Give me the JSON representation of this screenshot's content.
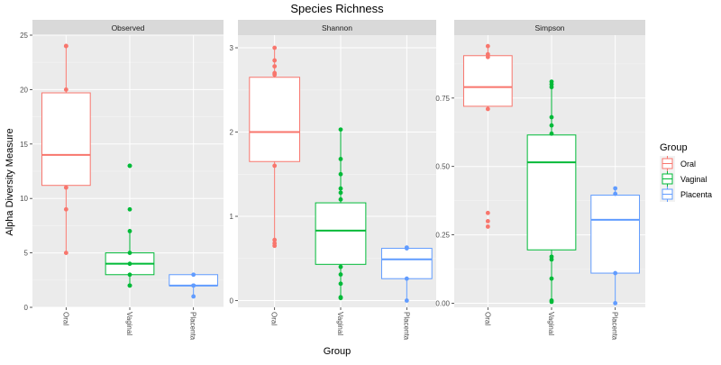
{
  "chart_data": {
    "type": "boxplot",
    "title": "Species Richness",
    "xlabel": "Group",
    "ylabel": "Alpha Diversity Measure",
    "legend": {
      "title": "Group",
      "placement": "right",
      "entries": [
        {
          "name": "Oral",
          "color": "#F8766D"
        },
        {
          "name": "Vaginal",
          "color": "#00BA38"
        },
        {
          "name": "Placenta",
          "color": "#619CFF"
        }
      ]
    },
    "grid": true,
    "categories": [
      "Oral",
      "Vaginal",
      "Placenta"
    ],
    "facets": [
      {
        "name": "Observed",
        "ylim": [
          0,
          25
        ],
        "yticks": [
          0,
          5,
          10,
          15,
          20,
          25
        ],
        "ytick_labels": [
          "0",
          "5",
          "10",
          "15",
          "20",
          "25"
        ],
        "boxes": [
          {
            "group": "Oral",
            "whisker_low": 5,
            "q1": 11.2,
            "median": 14,
            "q3": 19.7,
            "whisker_high": 24,
            "points": [
              24,
              24,
              20,
              11,
              9,
              5
            ]
          },
          {
            "group": "Vaginal",
            "whisker_low": 2,
            "q1": 3,
            "median": 4,
            "q3": 5,
            "whisker_high": 7,
            "points": [
              13,
              13,
              9,
              7,
              5,
              4,
              3,
              2,
              2
            ]
          },
          {
            "group": "Placenta",
            "whisker_low": 1,
            "q1": 2,
            "median": 2,
            "q3": 3,
            "whisker_high": 3,
            "points": [
              3,
              2,
              2,
              1
            ]
          }
        ]
      },
      {
        "name": "Shannon",
        "ylim": [
          -0.08,
          3.15
        ],
        "yticks": [
          0,
          1,
          2,
          3
        ],
        "ytick_labels": [
          "0",
          "1",
          "2",
          "3"
        ],
        "boxes": [
          {
            "group": "Oral",
            "whisker_low": 0.65,
            "q1": 1.65,
            "median": 2.0,
            "q3": 2.65,
            "whisker_high": 3.0,
            "points": [
              3.0,
              2.85,
              2.78,
              2.7,
              2.68,
              1.6,
              0.72,
              0.68,
              0.65
            ]
          },
          {
            "group": "Vaginal",
            "whisker_low": 0.03,
            "q1": 0.43,
            "median": 0.83,
            "q3": 1.16,
            "whisker_high": 2.03,
            "points": [
              2.03,
              1.68,
              1.5,
              1.33,
              1.28,
              1.2,
              0.4,
              0.31,
              0.2,
              0.04,
              0.03
            ]
          },
          {
            "group": "Placenta",
            "whisker_low": 0.0,
            "q1": 0.26,
            "median": 0.49,
            "q3": 0.62,
            "whisker_high": 0.63,
            "points": [
              0.63,
              0.62,
              0.26,
              0.0
            ]
          }
        ]
      },
      {
        "name": "Simpson",
        "ylim": [
          -0.015,
          0.98
        ],
        "yticks": [
          0,
          0.25,
          0.5,
          0.75
        ],
        "ytick_labels": [
          "0.00",
          "0.25",
          "0.50",
          "0.75"
        ],
        "boxes": [
          {
            "group": "Oral",
            "whisker_low": 0.71,
            "q1": 0.72,
            "median": 0.79,
            "q3": 0.905,
            "whisker_high": 0.94,
            "points": [
              0.94,
              0.91,
              0.9,
              0.71,
              0.33,
              0.3,
              0.28
            ]
          },
          {
            "group": "Vaginal",
            "whisker_low": 0.01,
            "q1": 0.195,
            "median": 0.515,
            "q3": 0.615,
            "whisker_high": 0.81,
            "points": [
              0.81,
              0.8,
              0.79,
              0.68,
              0.65,
              0.62,
              0.17,
              0.16,
              0.09,
              0.01,
              0.005
            ]
          },
          {
            "group": "Placenta",
            "whisker_low": 0.0,
            "q1": 0.11,
            "median": 0.305,
            "q3": 0.395,
            "whisker_high": 0.42,
            "points": [
              0.42,
              0.4,
              0.11,
              0.0
            ]
          }
        ]
      }
    ]
  }
}
